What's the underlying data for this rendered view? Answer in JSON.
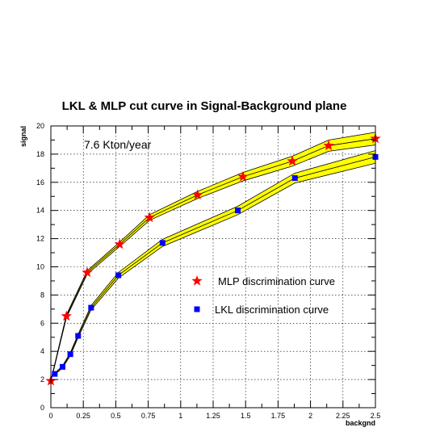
{
  "chart_data": {
    "type": "line",
    "title": "LKL & MLP cut curve in Signal-Background plane",
    "xlabel": "backgnd",
    "ylabel": "signal",
    "xlim": [
      0,
      2.5
    ],
    "ylim": [
      0,
      20
    ],
    "xticks": [
      "0",
      "0.25",
      "0.5",
      "0.75",
      "1",
      "1.25",
      "1.5",
      "1.75",
      "2",
      "2.25",
      "2.5"
    ],
    "yticks": [
      "0",
      "2",
      "4",
      "6",
      "8",
      "10",
      "12",
      "14",
      "16",
      "18",
      "20"
    ],
    "grid": true,
    "legend_position": "center-right",
    "annotation": "7.6 Kton/year",
    "band_color": "#ffff00",
    "series": [
      {
        "name": "MLP discrimination curve",
        "marker": "star",
        "color": "#ff0000",
        "x": [
          0.0,
          0.12,
          0.28,
          0.53,
          0.76,
          1.13,
          1.48,
          1.86,
          2.14,
          2.5
        ],
        "y": [
          1.9,
          6.5,
          9.6,
          11.6,
          13.5,
          15.1,
          16.4,
          17.5,
          18.6,
          19.1
        ],
        "band_halfwidth": [
          0.05,
          0.1,
          0.12,
          0.15,
          0.2,
          0.25,
          0.3,
          0.35,
          0.4,
          0.45
        ]
      },
      {
        "name": "LKL discrimination curve",
        "marker": "square",
        "color": "#0000ff",
        "x": [
          0.03,
          0.09,
          0.15,
          0.21,
          0.31,
          0.52,
          0.86,
          1.44,
          1.88,
          2.5
        ],
        "y": [
          2.4,
          2.9,
          3.8,
          5.1,
          7.1,
          9.4,
          11.7,
          14.0,
          16.3,
          17.8
        ],
        "band_halfwidth": [
          0.05,
          0.08,
          0.1,
          0.12,
          0.15,
          0.2,
          0.25,
          0.3,
          0.35,
          0.45
        ]
      }
    ]
  }
}
